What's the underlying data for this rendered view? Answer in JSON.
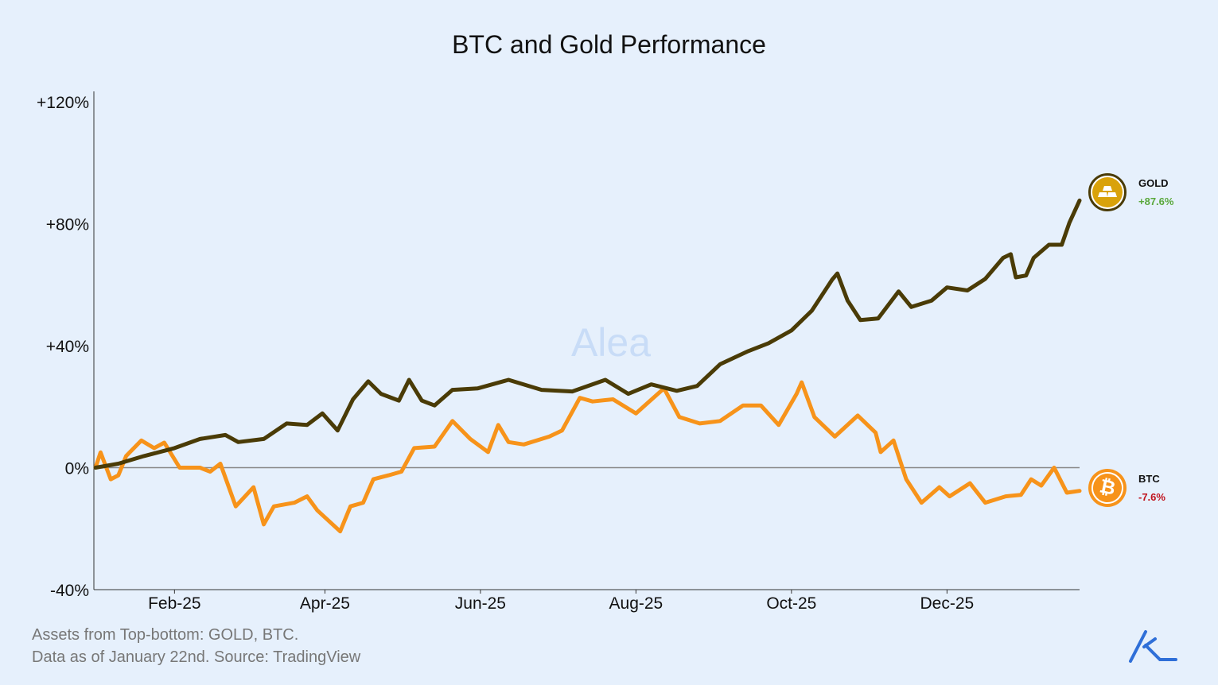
{
  "chart_data": {
    "type": "line",
    "title": "BTC and Gold Performance",
    "xlabel": "",
    "ylabel": "",
    "xlim": [
      "2025-01-01",
      "2026-01-22"
    ],
    "ylim": [
      -40,
      120
    ],
    "yticks": [
      {
        "value": 120,
        "label": "+120%"
      },
      {
        "value": 80,
        "label": "+80%"
      },
      {
        "value": 40,
        "label": "+40%"
      },
      {
        "value": 0,
        "label": "0%"
      },
      {
        "value": -40,
        "label": "-40%"
      }
    ],
    "xticks": [
      {
        "date": "2025-02-01",
        "label": "Feb-25"
      },
      {
        "date": "2025-04-01",
        "label": "Apr-25"
      },
      {
        "date": "2025-06-01",
        "label": "Jun-25"
      },
      {
        "date": "2025-08-01",
        "label": "Aug-25"
      },
      {
        "date": "2025-10-01",
        "label": "Oct-25"
      },
      {
        "date": "2025-12-01",
        "label": "Dec-25"
      }
    ],
    "grid": false,
    "zero_line": true,
    "legend_placement": "right",
    "series": [
      {
        "name": "GOLD",
        "final_label": "+87.6%",
        "color": "#4a3b06",
        "value_color": "#5aa83c",
        "icon": "gold-bars-icon",
        "points": [
          [
            "2025-01-01",
            0
          ],
          [
            "2025-01-10",
            1.3
          ],
          [
            "2025-01-20",
            3.8
          ],
          [
            "2025-02-01",
            6.4
          ],
          [
            "2025-02-11",
            9.4
          ],
          [
            "2025-02-21",
            10.7
          ],
          [
            "2025-02-26",
            8.4
          ],
          [
            "2025-03-08",
            9.4
          ],
          [
            "2025-03-17",
            14.5
          ],
          [
            "2025-03-25",
            14
          ],
          [
            "2025-03-31",
            17.8
          ],
          [
            "2025-04-06",
            12.2
          ],
          [
            "2025-04-12",
            22.4
          ],
          [
            "2025-04-18",
            28.3
          ],
          [
            "2025-04-23",
            24.2
          ],
          [
            "2025-04-30",
            22
          ],
          [
            "2025-05-04",
            28.8
          ],
          [
            "2025-05-09",
            22
          ],
          [
            "2025-05-14",
            20.4
          ],
          [
            "2025-05-21",
            25.5
          ],
          [
            "2025-05-31",
            26
          ],
          [
            "2025-06-12",
            28.8
          ],
          [
            "2025-06-25",
            25.5
          ],
          [
            "2025-07-07",
            25
          ],
          [
            "2025-07-20",
            28.8
          ],
          [
            "2025-07-29",
            24.2
          ],
          [
            "2025-08-07",
            27.3
          ],
          [
            "2025-08-17",
            25.2
          ],
          [
            "2025-08-25",
            26.8
          ],
          [
            "2025-09-03",
            33.9
          ],
          [
            "2025-09-14",
            38.2
          ],
          [
            "2025-09-22",
            40.8
          ],
          [
            "2025-10-01",
            45
          ],
          [
            "2025-10-09",
            51.5
          ],
          [
            "2025-10-17",
            61.7
          ],
          [
            "2025-10-19",
            63.7
          ],
          [
            "2025-10-23",
            54.8
          ],
          [
            "2025-10-28",
            48.4
          ],
          [
            "2025-11-04",
            48.9
          ],
          [
            "2025-11-12",
            57.8
          ],
          [
            "2025-11-17",
            52.7
          ],
          [
            "2025-11-25",
            54.8
          ],
          [
            "2025-12-01",
            59.1
          ],
          [
            "2025-12-09",
            58.1
          ],
          [
            "2025-12-16",
            61.9
          ],
          [
            "2025-12-23",
            68.8
          ],
          [
            "2025-12-26",
            70
          ],
          [
            "2025-12-28",
            62.4
          ],
          [
            "2026-01-01",
            63
          ],
          [
            "2026-01-04",
            68.8
          ],
          [
            "2026-01-10",
            73.1
          ],
          [
            "2026-01-15",
            73.1
          ],
          [
            "2026-01-18",
            80.3
          ],
          [
            "2026-01-22",
            87.6
          ]
        ]
      },
      {
        "name": "BTC",
        "final_label": "-7.6%",
        "color": "#f7931a",
        "value_color": "#c0121c",
        "icon": "bitcoin-icon",
        "points": [
          [
            "2025-01-01",
            0
          ],
          [
            "2025-01-03",
            5
          ],
          [
            "2025-01-07",
            -3.8
          ],
          [
            "2025-01-10",
            -2.5
          ],
          [
            "2025-01-13",
            3.8
          ],
          [
            "2025-01-19",
            8.9
          ],
          [
            "2025-01-24",
            6.4
          ],
          [
            "2025-01-28",
            8.2
          ],
          [
            "2025-02-03",
            0
          ],
          [
            "2025-02-11",
            0
          ],
          [
            "2025-02-15",
            -1.3
          ],
          [
            "2025-02-19",
            1.3
          ],
          [
            "2025-02-25",
            -12.7
          ],
          [
            "2025-03-04",
            -6.4
          ],
          [
            "2025-03-08",
            -18.6
          ],
          [
            "2025-03-12",
            -12.7
          ],
          [
            "2025-03-20",
            -11.5
          ],
          [
            "2025-03-25",
            -9.4
          ],
          [
            "2025-03-29",
            -14
          ],
          [
            "2025-04-07",
            -20.9
          ],
          [
            "2025-04-11",
            -12.7
          ],
          [
            "2025-04-16",
            -11.5
          ],
          [
            "2025-04-20",
            -3.8
          ],
          [
            "2025-04-26",
            -2.5
          ],
          [
            "2025-05-01",
            -1.3
          ],
          [
            "2025-05-06",
            6.4
          ],
          [
            "2025-05-14",
            6.9
          ],
          [
            "2025-05-21",
            15.3
          ],
          [
            "2025-05-28",
            9.4
          ],
          [
            "2025-06-04",
            5.1
          ],
          [
            "2025-06-08",
            14
          ],
          [
            "2025-06-12",
            8.4
          ],
          [
            "2025-06-18",
            7.6
          ],
          [
            "2025-06-28",
            10.2
          ],
          [
            "2025-07-03",
            12.2
          ],
          [
            "2025-07-10",
            22.9
          ],
          [
            "2025-07-15",
            21.7
          ],
          [
            "2025-07-23",
            22.4
          ],
          [
            "2025-08-01",
            17.8
          ],
          [
            "2025-08-12",
            26
          ],
          [
            "2025-08-18",
            16.6
          ],
          [
            "2025-08-26",
            14.5
          ],
          [
            "2025-09-03",
            15.3
          ],
          [
            "2025-09-12",
            20.4
          ],
          [
            "2025-09-19",
            20.4
          ],
          [
            "2025-09-26",
            14
          ],
          [
            "2025-10-03",
            24.2
          ],
          [
            "2025-10-05",
            28
          ],
          [
            "2025-10-10",
            16.6
          ],
          [
            "2025-10-18",
            10.2
          ],
          [
            "2025-10-27",
            17.1
          ],
          [
            "2025-11-03",
            11.5
          ],
          [
            "2025-11-05",
            5.1
          ],
          [
            "2025-11-10",
            8.9
          ],
          [
            "2025-11-15",
            -3.8
          ],
          [
            "2025-11-21",
            -11.5
          ],
          [
            "2025-11-28",
            -6.4
          ],
          [
            "2025-12-02",
            -9.4
          ],
          [
            "2025-12-10",
            -5.1
          ],
          [
            "2025-12-16",
            -11.5
          ],
          [
            "2025-12-24",
            -9.4
          ],
          [
            "2025-12-30",
            -8.9
          ],
          [
            "2026-01-03",
            -3.8
          ],
          [
            "2026-01-07",
            -5.9
          ],
          [
            "2026-01-12",
            0
          ],
          [
            "2026-01-17",
            -8.2
          ],
          [
            "2026-01-22",
            -7.6
          ]
        ]
      }
    ]
  },
  "watermark": "Alea",
  "footer": {
    "line1": "Assets from Top-bottom: GOLD, BTC.",
    "line2": "Data as of January 22nd. Source: TradingView"
  },
  "logo": "alea-logo-icon"
}
